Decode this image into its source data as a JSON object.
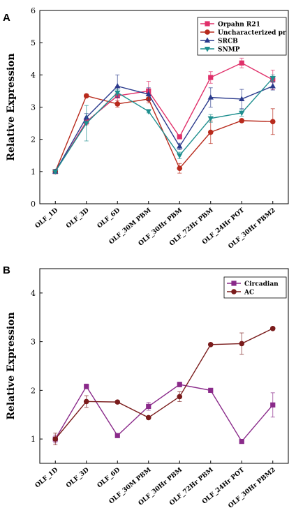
{
  "chart_data": [
    {
      "type": "line",
      "panel": "A",
      "ylabel": "Relative Expression",
      "ylim": [
        0,
        6
      ],
      "yticks": [
        0,
        1,
        2,
        3,
        4,
        5,
        6
      ],
      "legend_position": "top-right",
      "categories": [
        "OLF_1D",
        "OLF_3D",
        "OLF_6D",
        "OLF_30M PBM",
        "OLF_30Hr PBM",
        "OLF_72Hr PBM",
        "OLF_24Hr POT",
        "OLF_30Hr PBM2"
      ],
      "series": [
        {
          "name": "Orpahn R21",
          "color": "#e0306a",
          "marker": "square",
          "values": [
            1.0,
            2.55,
            3.35,
            3.5,
            2.08,
            3.92,
            4.37,
            3.85
          ],
          "errors": [
            0.05,
            0.1,
            0.3,
            0.3,
            0.05,
            0.18,
            0.15,
            0.3
          ]
        },
        {
          "name": "Uncharacterized pr",
          "color": "#b82a1c",
          "marker": "circle",
          "values": [
            1.0,
            3.35,
            3.1,
            3.25,
            1.1,
            2.22,
            2.58,
            2.55
          ],
          "errors": [
            0.05,
            0.05,
            0.1,
            0.12,
            0.15,
            0.35,
            0.05,
            0.4
          ]
        },
        {
          "name": "SRCB",
          "color": "#2a3a8c",
          "marker": "triangle-up",
          "values": [
            1.0,
            2.68,
            3.65,
            3.4,
            1.78,
            3.3,
            3.25,
            3.65
          ],
          "errors": [
            0.05,
            0.12,
            0.35,
            0.2,
            0.1,
            0.3,
            0.3,
            0.12
          ]
        },
        {
          "name": "SNMP",
          "color": "#1f8f8f",
          "marker": "triangle-down",
          "values": [
            1.0,
            2.5,
            3.45,
            2.87,
            1.5,
            2.65,
            2.82,
            3.9
          ],
          "errors": [
            0.05,
            0.55,
            0.1,
            0.05,
            0.1,
            0.12,
            0.1,
            0.1
          ]
        }
      ]
    },
    {
      "type": "line",
      "panel": "B",
      "ylabel": "Relative Expression",
      "ylim": [
        0.5,
        4.5
      ],
      "yticks": [
        1,
        2,
        3,
        4
      ],
      "legend_position": "top-right",
      "categories": [
        "OLF_1D",
        "OLF_3D",
        "OLF_6D",
        "OLF_30M PBM",
        "OLF_30Hr PBM",
        "OLF_72Hr PBM",
        "OLF_24Hr POT",
        "OLF_30Hr PBM2"
      ],
      "series": [
        {
          "name": "Circadian",
          "color": "#8a2a8a",
          "marker": "square",
          "values": [
            1.0,
            2.08,
            1.07,
            1.67,
            2.12,
            2.0,
            0.95,
            1.7
          ],
          "errors": [
            0.08,
            0.05,
            0.02,
            0.08,
            0.05,
            0.02,
            0.02,
            0.25
          ]
        },
        {
          "name": "AC",
          "color": "#7a1c1c",
          "marker": "circle",
          "values": [
            1.0,
            1.77,
            1.76,
            1.44,
            1.87,
            2.94,
            2.96,
            3.27
          ],
          "errors": [
            0.12,
            0.12,
            0.03,
            0.03,
            0.1,
            0.03,
            0.22,
            0.03
          ]
        }
      ]
    }
  ]
}
